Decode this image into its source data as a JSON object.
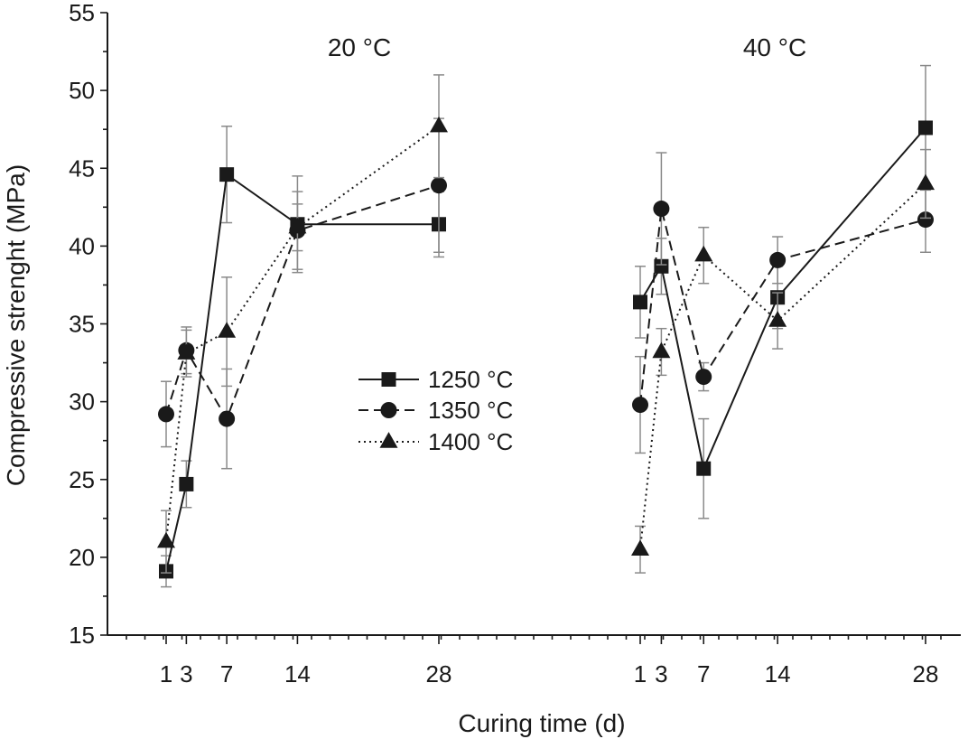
{
  "chart_data": {
    "type": "line",
    "xlabel": "Curing time (d)",
    "ylabel": "Compressive strenght (MPa)",
    "ylim": [
      15,
      55
    ],
    "yticks": [
      "15",
      "20",
      "25",
      "30",
      "35",
      "40",
      "45",
      "50",
      "55"
    ],
    "ytick_values": [
      15,
      20,
      25,
      30,
      35,
      40,
      45,
      50,
      55
    ],
    "grid": false,
    "legend_position": "center",
    "panels": [
      {
        "title": "20 °C",
        "x": [
          1,
          3,
          7,
          14,
          28
        ],
        "xticks": [
          "1",
          "3",
          "7",
          "14",
          "28"
        ],
        "series": [
          {
            "name": "1250 °C",
            "marker": "square",
            "line": "solid",
            "values": [
              19.1,
              24.7,
              44.6,
              41.4,
              41.4
            ],
            "errors": [
              1.0,
              1.5,
              3.1,
              3.1,
              2.1
            ]
          },
          {
            "name": "1350 °C",
            "marker": "circle",
            "line": "dashed",
            "values": [
              29.2,
              33.3,
              28.9,
              41.0,
              43.9
            ],
            "errors": [
              2.1,
              1.5,
              3.2,
              2.5,
              4.3
            ]
          },
          {
            "name": "1400 °C",
            "marker": "triangle",
            "line": "dotted",
            "values": [
              21.0,
              33.1,
              34.5,
              41.2,
              47.7
            ],
            "errors": [
              2.0,
              1.5,
              3.5,
              1.5,
              3.3
            ]
          }
        ]
      },
      {
        "title": "40 °C",
        "x": [
          1,
          3,
          7,
          14,
          28
        ],
        "xticks": [
          "1",
          "3",
          "7",
          "14",
          "28"
        ],
        "series": [
          {
            "name": "1250 °C",
            "marker": "square",
            "line": "solid",
            "values": [
              36.4,
              38.7,
              25.7,
              36.7,
              47.6
            ],
            "errors": [
              2.3,
              1.8,
              3.2,
              2.0,
              4.0
            ]
          },
          {
            "name": "1350 °C",
            "marker": "circle",
            "line": "dashed",
            "values": [
              29.8,
              42.4,
              31.6,
              39.1,
              41.7
            ],
            "errors": [
              3.1,
              3.6,
              0.9,
              1.5,
              2.1
            ]
          },
          {
            "name": "1400 °C",
            "marker": "triangle",
            "line": "dotted",
            "values": [
              20.5,
              33.2,
              39.4,
              35.2,
              44.0
            ],
            "errors": [
              1.5,
              1.5,
              1.8,
              1.8,
              2.2
            ]
          }
        ]
      }
    ],
    "legend": [
      {
        "label": "1250 °C",
        "marker": "square",
        "line": "solid"
      },
      {
        "label": "1350 °C",
        "marker": "circle",
        "line": "dashed"
      },
      {
        "label": "1400 °C",
        "marker": "triangle",
        "line": "dotted"
      }
    ]
  }
}
